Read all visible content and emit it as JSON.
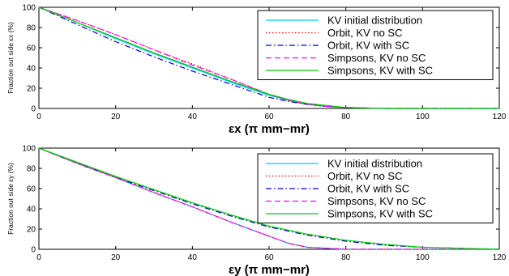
{
  "chart_data": [
    {
      "type": "line",
      "xlabel": "εx (π mm−mr)",
      "ylabel": "Fraction out side εx (%)",
      "xlim": [
        0,
        120
      ],
      "ylim": [
        0,
        100
      ],
      "xticks": [
        "0",
        "20",
        "40",
        "60",
        "80",
        "100",
        "120"
      ],
      "yticks": [
        "0",
        "20",
        "40",
        "60",
        "80",
        "100"
      ],
      "grid": false,
      "legend_position": "top-right",
      "series": [
        {
          "name": "KV initial distribution",
          "color": "#00c8ff",
          "dash": "solid",
          "x": [
            0,
            10,
            20,
            30,
            40,
            50,
            60,
            65,
            70,
            75,
            80,
            90,
            100,
            120
          ],
          "y": [
            100,
            85,
            69,
            54,
            40,
            26,
            13,
            8,
            4,
            2,
            1,
            0,
            0,
            0
          ]
        },
        {
          "name": "Orbit, KV no SC",
          "color": "#ff0000",
          "dash": "dot",
          "x": [
            0,
            10,
            20,
            30,
            40,
            50,
            60,
            65,
            70,
            75,
            80,
            90,
            100,
            120
          ],
          "y": [
            100,
            87,
            73,
            58,
            44,
            29,
            14,
            8,
            4,
            2,
            1,
            0,
            0,
            0
          ]
        },
        {
          "name": "Orbit, KV with SC",
          "color": "#0000cc",
          "dash": "dashdot",
          "x": [
            0,
            10,
            20,
            30,
            40,
            50,
            60,
            65,
            70,
            75,
            80,
            90,
            100,
            120
          ],
          "y": [
            100,
            83,
            66,
            51,
            37,
            24,
            11,
            7,
            4,
            2,
            1,
            0,
            0,
            0
          ]
        },
        {
          "name": "Simpsons, KV no SC",
          "color": "#ff00ff",
          "dash": "dash",
          "x": [
            0,
            10,
            20,
            30,
            40,
            50,
            60,
            65,
            70,
            75,
            80,
            90,
            100,
            120
          ],
          "y": [
            100,
            87,
            73,
            58,
            43,
            29,
            14,
            8,
            4,
            2,
            1,
            0,
            0,
            0
          ]
        },
        {
          "name": "Simpsons, KV with SC",
          "color": "#00cc00",
          "dash": "solid",
          "x": [
            0,
            10,
            20,
            30,
            40,
            50,
            60,
            65,
            70,
            75,
            80,
            90,
            100,
            120
          ],
          "y": [
            100,
            85,
            70,
            55,
            41,
            27,
            14,
            9,
            5,
            3,
            1,
            0,
            0,
            0
          ]
        }
      ]
    },
    {
      "type": "line",
      "xlabel": "εy (π mm−mr)",
      "ylabel": "Fraction out side εy (%)",
      "xlim": [
        0,
        120
      ],
      "ylim": [
        0,
        100
      ],
      "xticks": [
        "0",
        "20",
        "40",
        "60",
        "80",
        "100",
        "120"
      ],
      "yticks": [
        "0",
        "20",
        "40",
        "60",
        "80",
        "100"
      ],
      "grid": false,
      "legend_position": "top-right",
      "series": [
        {
          "name": "KV initial distribution",
          "color": "#00c8ff",
          "dash": "solid",
          "x": [
            0,
            10,
            20,
            30,
            40,
            50,
            60,
            65,
            70,
            80,
            90,
            100,
            110,
            120
          ],
          "y": [
            100,
            85,
            71,
            56,
            42,
            27,
            13,
            6,
            2,
            0,
            0,
            0,
            0,
            0
          ]
        },
        {
          "name": "Orbit, KV no SC",
          "color": "#ff0000",
          "dash": "dot",
          "x": [
            0,
            10,
            20,
            30,
            40,
            50,
            60,
            65,
            70,
            80,
            90,
            100,
            110,
            120
          ],
          "y": [
            100,
            85,
            71,
            56,
            42,
            27,
            13,
            6,
            2,
            0,
            0,
            0,
            0,
            0
          ]
        },
        {
          "name": "Orbit, KV with SC",
          "color": "#0000cc",
          "dash": "dashdot",
          "x": [
            0,
            10,
            20,
            30,
            40,
            50,
            60,
            70,
            80,
            90,
            100,
            110,
            120
          ],
          "y": [
            100,
            85,
            71,
            58,
            45,
            33,
            22,
            14,
            8,
            4,
            2,
            1,
            0
          ]
        },
        {
          "name": "Simpsons, KV no SC",
          "color": "#ff00ff",
          "dash": "dash",
          "x": [
            0,
            10,
            20,
            30,
            40,
            50,
            60,
            65,
            70,
            80,
            90,
            100,
            110,
            120
          ],
          "y": [
            100,
            85,
            71,
            56,
            42,
            27,
            13,
            6,
            2,
            0,
            0,
            0,
            0,
            0
          ]
        },
        {
          "name": "Simpsons, KV with SC",
          "color": "#00cc00",
          "dash": "solid",
          "x": [
            0,
            10,
            20,
            30,
            40,
            50,
            60,
            70,
            80,
            90,
            100,
            110,
            120
          ],
          "y": [
            100,
            86,
            72,
            59,
            46,
            34,
            23,
            15,
            9,
            5,
            2,
            1,
            0
          ]
        }
      ]
    }
  ]
}
